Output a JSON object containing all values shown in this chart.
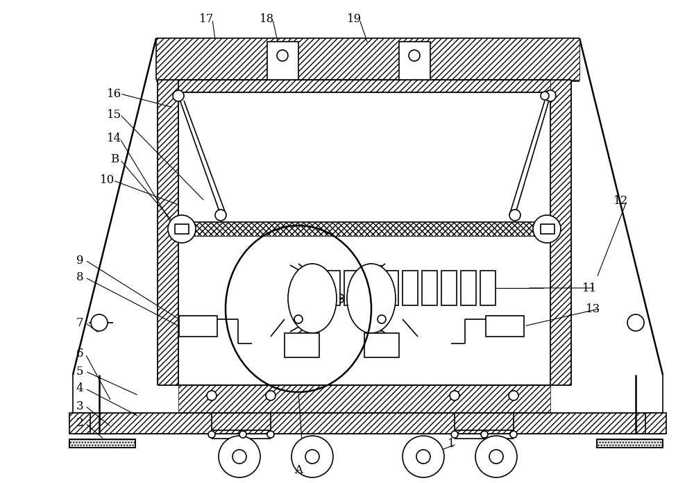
{
  "bg_color": "#ffffff",
  "line_color": "#000000",
  "fig_width": 10.0,
  "fig_height": 6.96,
  "dpi": 100
}
